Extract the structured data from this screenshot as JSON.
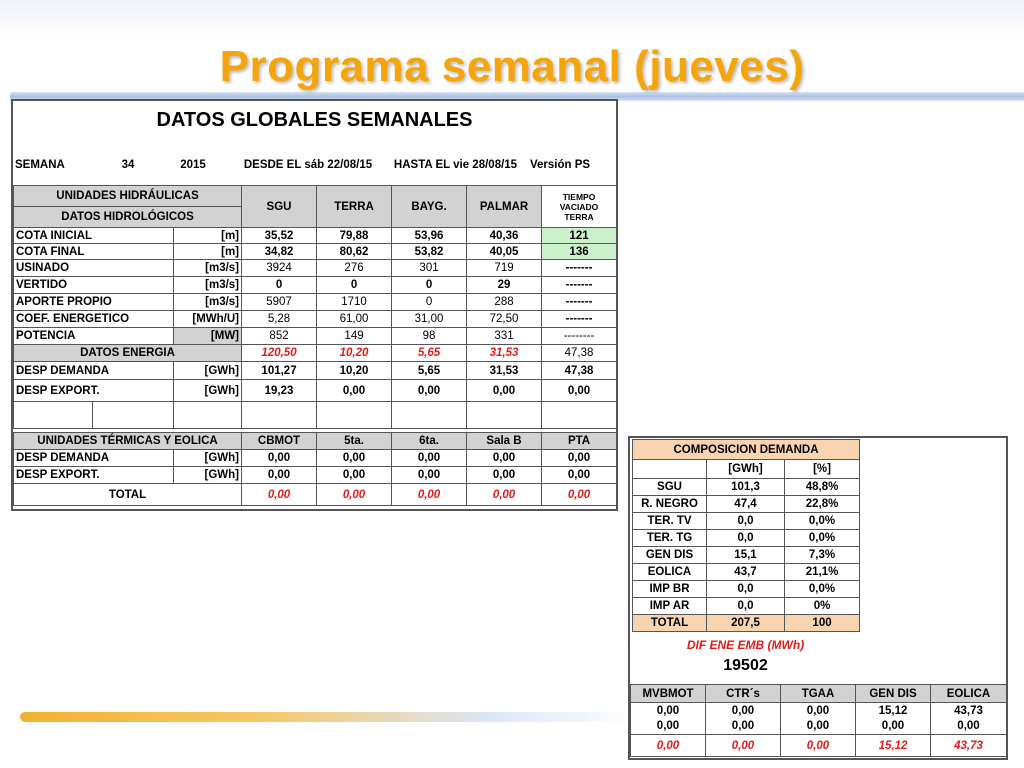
{
  "title": "Programa semanal (jueves)",
  "left": {
    "heading": "DATOS GLOBALES SEMANALES",
    "week": {
      "label": "SEMANA",
      "number": "34",
      "year": "2015",
      "desde": "DESDE EL sáb 22/08/15",
      "hasta": "HASTA EL  vie 28/08/15",
      "version": "Versión  PS"
    },
    "hydro_header": {
      "line1": "UNIDADES HIDRÁULICAS",
      "line2": "DATOS HIDROLÓGICOS",
      "cols": [
        "SGU",
        "TERRA",
        "BAYG.",
        "PALMAR"
      ],
      "tiempo1": "TIEMPO",
      "tiempo2": "VACIADO",
      "tiempo3": "TERRA"
    },
    "hydro_rows": [
      {
        "label": "COTA INICIAL",
        "unit": "[m]",
        "vals": [
          "35,52",
          "79,88",
          "53,96",
          "40,36",
          "121"
        ]
      },
      {
        "label": "COTA FINAL",
        "unit": "[m]",
        "vals": [
          "34,82",
          "80,62",
          "53,82",
          "40,05",
          "136"
        ]
      },
      {
        "label": "USINADO",
        "unit": "[m3/s]",
        "vals": [
          "3924",
          "276",
          "301",
          "719",
          "-------"
        ]
      },
      {
        "label": "VERTIDO",
        "unit": "[m3/s]",
        "vals": [
          "0",
          "0",
          "0",
          "29",
          "-------"
        ]
      },
      {
        "label": "APORTE PROPIO",
        "unit": "[m3/s]",
        "vals": [
          "5907",
          "1710",
          "0",
          "288",
          "-------"
        ]
      },
      {
        "label": "COEF. ENERGETICO",
        "unit": "[MWh/U]",
        "vals": [
          "5,28",
          "61,00",
          "31,00",
          "72,50",
          "-------"
        ]
      },
      {
        "label": "POTENCIA",
        "unit": "[MW]",
        "vals": [
          "852",
          "149",
          "98",
          "331",
          "--------"
        ]
      }
    ],
    "energia": {
      "label": "DATOS ENERGIA",
      "vals": [
        "120,50",
        "10,20",
        "5,65",
        "31,53",
        "47,38"
      ]
    },
    "desp_rows": [
      {
        "label": "DESP DEMANDA",
        "unit": "[GWh]",
        "vals": [
          "101,27",
          "10,20",
          "5,65",
          "31,53",
          "47,38"
        ]
      },
      {
        "label": "DESP EXPORT.",
        "unit": "[GWh]",
        "vals": [
          "19,23",
          "0,00",
          "0,00",
          "0,00",
          "0,00"
        ]
      }
    ],
    "thermal_header": {
      "label": "UNIDADES TÉRMICAS Y EOLICA",
      "cols": [
        "CBMOT",
        "5ta.",
        "6ta.",
        "Sala B",
        "PTA"
      ]
    },
    "thermal_rows": [
      {
        "label": "DESP DEMANDA",
        "unit": "[GWh]",
        "vals": [
          "0,00",
          "0,00",
          "0,00",
          "0,00",
          "0,00"
        ]
      },
      {
        "label": "DESP EXPORT.",
        "unit": "[GWh]",
        "vals": [
          "0,00",
          "0,00",
          "0,00",
          "0,00",
          "0,00"
        ]
      }
    ],
    "total": {
      "label": "TOTAL",
      "vals": [
        "0,00",
        "0,00",
        "0,00",
        "0,00",
        "0,00"
      ]
    }
  },
  "right": {
    "heading": "COMPOSICION DEMANDA",
    "cols": [
      "[GWh]",
      "[%]"
    ],
    "rows": [
      {
        "label": "SGU",
        "gwh": "101,3",
        "pct": "48,8%"
      },
      {
        "label": "R. NEGRO",
        "gwh": "47,4",
        "pct": "22,8%"
      },
      {
        "label": "TER. TV",
        "gwh": "0,0",
        "pct": "0,0%"
      },
      {
        "label": "TER. TG",
        "gwh": "0,0",
        "pct": "0,0%"
      },
      {
        "label": "GEN DIS",
        "gwh": "15,1",
        "pct": "7,3%"
      },
      {
        "label": "EOLICA",
        "gwh": "43,7",
        "pct": "21,1%"
      },
      {
        "label": "IMP BR",
        "gwh": "0,0",
        "pct": "0,0%"
      },
      {
        "label": "IMP AR",
        "gwh": "0,0",
        "pct": "0%"
      }
    ],
    "total": {
      "label": "TOTAL",
      "gwh": "207,5",
      "pct": "100"
    },
    "dif_label": "DIF ENE EMB (MWh)",
    "dif_value": "19502",
    "bottom_cols": [
      "MVBMOT",
      "CTR´s",
      "TGAA",
      "GEN DIS",
      "EOLICA"
    ],
    "bottom_rows": [
      [
        "0,00",
        "0,00",
        "0,00",
        "15,12",
        "43,73"
      ],
      [
        "0,00",
        "0,00",
        "0,00",
        "0,00",
        "0,00"
      ]
    ],
    "bottom_total": [
      "0,00",
      "0,00",
      "0,00",
      "15,12",
      "43,73"
    ]
  }
}
